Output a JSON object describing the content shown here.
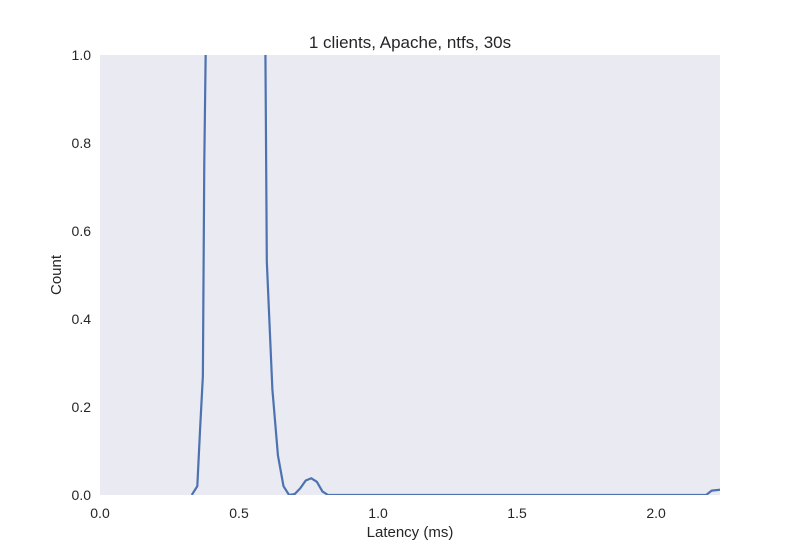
{
  "chart_data": {
    "type": "line",
    "title": "1 clients, Apache, ntfs, 30s",
    "xlabel": "Latency (ms)",
    "ylabel": "Count",
    "xlim": [
      0.0,
      2.23
    ],
    "ylim": [
      0.0,
      1.0
    ],
    "xticks": [
      0.0,
      0.5,
      1.0,
      1.5,
      2.0
    ],
    "xtick_labels": [
      "0.0",
      "0.5",
      "1.0",
      "1.5",
      "2.0"
    ],
    "yticks": [
      0.0,
      0.2,
      0.4,
      0.6,
      0.8,
      1.0
    ],
    "ytick_labels": [
      "0.0",
      "0.2",
      "0.4",
      "0.6",
      "0.8",
      "1.0"
    ],
    "grid": false,
    "background_color": "#eaeaf2",
    "series": [
      {
        "color": "#4c72b0",
        "x": [
          0.33,
          0.35,
          0.36,
          0.37,
          0.375,
          0.38,
          0.385,
          0.59,
          0.595,
          0.6,
          0.62,
          0.64,
          0.66,
          0.68,
          0.7,
          0.72,
          0.74,
          0.76,
          0.78,
          0.8,
          0.82,
          0.85,
          1.0,
          1.5,
          2.0,
          2.18,
          2.2,
          2.23
        ],
        "y": [
          0.0,
          0.02,
          0.15,
          0.27,
          0.75,
          1.0,
          1.05,
          1.05,
          1.0,
          0.53,
          0.24,
          0.09,
          0.02,
          0.0,
          0.002,
          0.015,
          0.033,
          0.038,
          0.03,
          0.008,
          0.0,
          0.0,
          0.0,
          0.0,
          0.0,
          0.0,
          0.01,
          0.012
        ]
      }
    ]
  }
}
